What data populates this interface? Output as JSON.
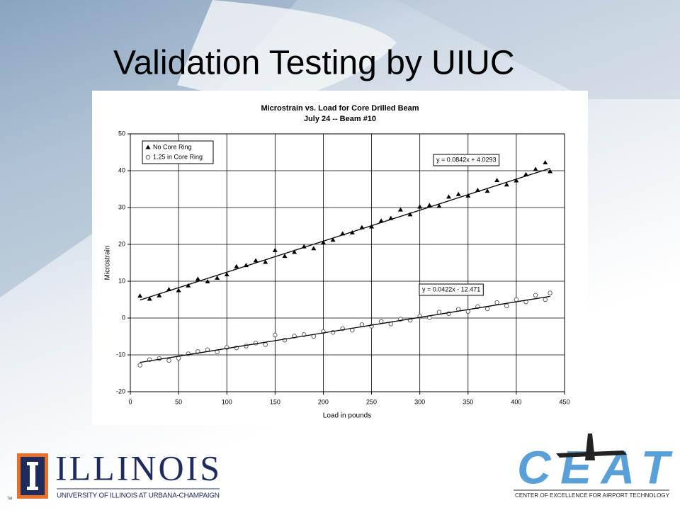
{
  "slide": {
    "title": "Validation Testing by UIUC",
    "logos": [
      "ILLINOIS",
      "UNIVERSITY OF ILLINOIS AT URBANA-CHAMPAIGN",
      "TM",
      "CEAT",
      "CENTER OF EXCELLENCE FOR AIRPORT TECHNOLOGY"
    ]
  },
  "chart_data": {
    "type": "scatter",
    "title": "Microstrain vs. Load for Core Drilled Beam",
    "subtitle": "July 24 -- Beam #10",
    "x_label": "Load in pounds",
    "y_label": "Microstrain",
    "xlim": [
      0,
      450
    ],
    "xticks": [
      0,
      50,
      100,
      150,
      200,
      250,
      300,
      350,
      400,
      450
    ],
    "ylim": [
      -20,
      50
    ],
    "yticks": [
      -20,
      -10,
      0,
      10,
      20,
      30,
      40,
      50
    ],
    "grid": true,
    "legend": "top-left",
    "series": [
      {
        "name": "No Core Ring",
        "color": "#000000",
        "marker": "triangle",
        "x": [
          10,
          20,
          30,
          40,
          50,
          60,
          70,
          80,
          90,
          100,
          110,
          120,
          130,
          140,
          150,
          160,
          170,
          180,
          190,
          200,
          210,
          220,
          230,
          240,
          250,
          260,
          270,
          280,
          290,
          300,
          310,
          320,
          330,
          340,
          350,
          360,
          370,
          380,
          390,
          400,
          410,
          420,
          430,
          435
        ],
        "values": [
          6.0,
          5.2,
          6.1,
          7.8,
          7.5,
          8.8,
          10.6,
          9.9,
          10.9,
          11.8,
          14.0,
          14.3,
          15.6,
          15.2,
          18.4,
          16.8,
          17.9,
          19.4,
          18.9,
          20.5,
          21.2,
          22.9,
          23.2,
          24.6,
          24.8,
          26.4,
          27.1,
          29.4,
          28.1,
          30.2,
          30.6,
          30.4,
          32.9,
          33.6,
          33.2,
          34.7,
          34.5,
          37.4,
          36.2,
          37.3,
          39.0,
          40.4,
          42.2,
          39.8
        ],
        "trendline": {
          "slope": 0.0842,
          "intercept": 4.0293,
          "label": "y = 0.0842x + 4.0293"
        }
      },
      {
        "name": "1.25 in Core Ring",
        "color": "#555555",
        "marker": "circle",
        "x": [
          10,
          20,
          30,
          40,
          50,
          60,
          70,
          80,
          90,
          100,
          110,
          120,
          130,
          140,
          150,
          160,
          170,
          180,
          190,
          200,
          210,
          220,
          230,
          240,
          250,
          260,
          270,
          280,
          290,
          300,
          310,
          320,
          330,
          340,
          350,
          360,
          370,
          380,
          390,
          400,
          410,
          420,
          430,
          435
        ],
        "values": [
          -12.8,
          -11.3,
          -11.0,
          -11.5,
          -10.9,
          -9.7,
          -9.1,
          -8.6,
          -9.2,
          -8.0,
          -8.1,
          -7.6,
          -6.8,
          -7.2,
          -4.6,
          -6.0,
          -4.9,
          -4.5,
          -5.0,
          -3.7,
          -3.9,
          -2.9,
          -3.3,
          -1.8,
          -2.2,
          -0.9,
          -1.6,
          -0.3,
          -0.6,
          0.5,
          0.1,
          1.6,
          1.2,
          2.4,
          1.8,
          3.1,
          2.5,
          4.2,
          3.3,
          5.0,
          4.4,
          6.2,
          5.0,
          6.8
        ],
        "trendline": {
          "slope": 0.0422,
          "intercept": -12.471,
          "label": "y = 0.0422x - 12.471"
        }
      }
    ]
  }
}
